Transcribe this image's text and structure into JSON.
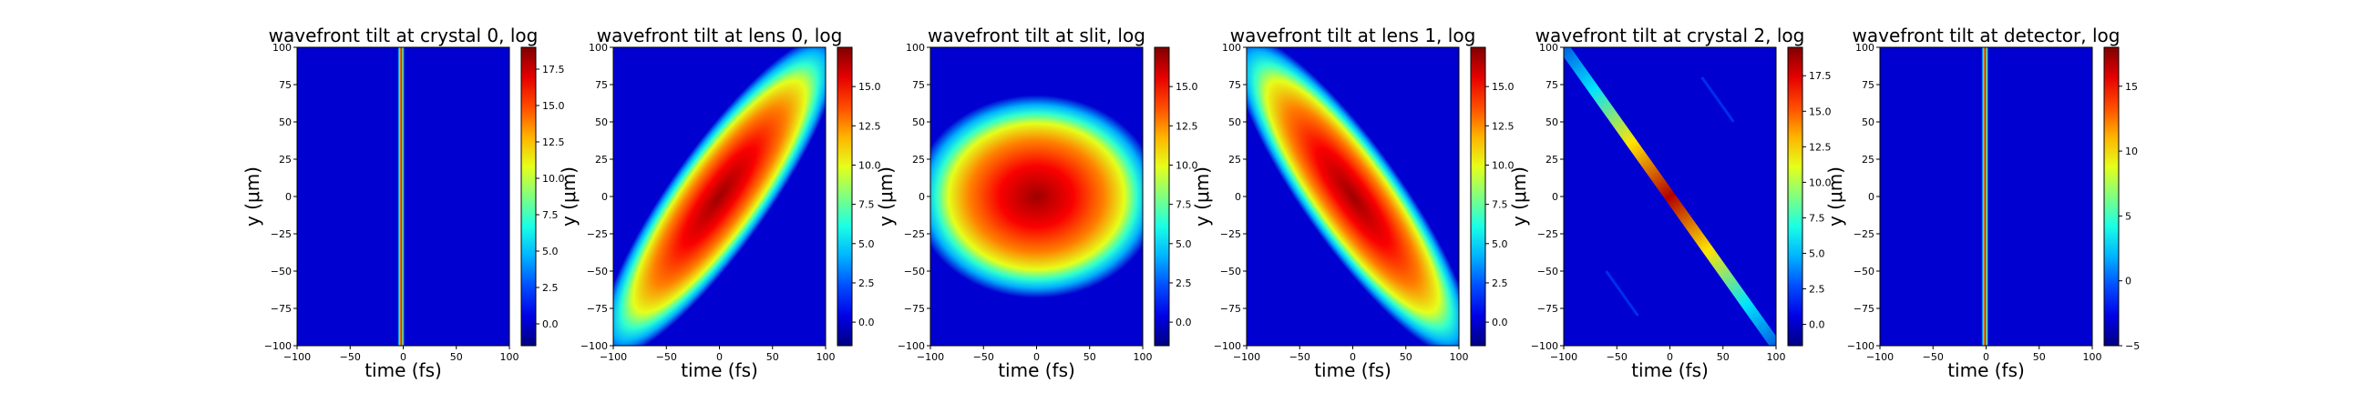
{
  "chart_data": [
    {
      "type": "heatmap",
      "title": "wavefront tilt at crystal 0, log",
      "xlabel": "time (fs)",
      "ylabel": "y (μm)",
      "xlim": [
        -100,
        100
      ],
      "ylim": [
        -100,
        100
      ],
      "x_ticks": [
        -100,
        -50,
        0,
        50,
        100
      ],
      "y_ticks": [
        -100,
        -75,
        -50,
        -25,
        0,
        25,
        50,
        75,
        100
      ],
      "colorbar": {
        "min": -1.5,
        "max": 19,
        "ticks": [
          "0.0",
          "2.5",
          "5.0",
          "7.5",
          "10.0",
          "12.5",
          "15.0",
          "17.5"
        ]
      },
      "feature": {
        "kind": "vertical_line",
        "center_time_fs": -2,
        "width_fs": 3
      },
      "colormap": "jet"
    },
    {
      "type": "heatmap",
      "title": "wavefront tilt at lens 0, log",
      "xlabel": "time (fs)",
      "ylabel": "y (μm)",
      "xlim": [
        -100,
        100
      ],
      "ylim": [
        -100,
        100
      ],
      "x_ticks": [
        -100,
        -50,
        0,
        50,
        100
      ],
      "y_ticks": [
        -100,
        -75,
        -50,
        -25,
        0,
        25,
        50,
        75,
        100
      ],
      "colorbar": {
        "min": -1.5,
        "max": 17.5,
        "ticks": [
          "0.0",
          "2.5",
          "5.0",
          "7.5",
          "10.0",
          "12.5",
          "15.0"
        ]
      },
      "feature": {
        "kind": "tilted_ellipse",
        "slope": 1,
        "major_half_length": 150,
        "minor_half_width": 38
      },
      "colormap": "jet"
    },
    {
      "type": "heatmap",
      "title": "wavefront tilt at slit, log",
      "xlabel": "time (fs)",
      "ylabel": "y (μm)",
      "xlim": [
        -100,
        100
      ],
      "ylim": [
        -100,
        100
      ],
      "x_ticks": [
        -100,
        -50,
        0,
        50,
        100
      ],
      "y_ticks": [
        -100,
        -75,
        -50,
        -25,
        0,
        25,
        50,
        75,
        100
      ],
      "colorbar": {
        "min": -1.5,
        "max": 17.5,
        "ticks": [
          "0.0",
          "2.5",
          "5.0",
          "7.5",
          "10.0",
          "12.5",
          "15.0"
        ]
      },
      "feature": {
        "kind": "ellipse",
        "half_width_fs": 115,
        "half_height_um": 68
      },
      "colormap": "jet"
    },
    {
      "type": "heatmap",
      "title": "wavefront tilt at lens 1, log",
      "xlabel": "time (fs)",
      "ylabel": "y (μm)",
      "xlim": [
        -100,
        100
      ],
      "ylim": [
        -100,
        100
      ],
      "x_ticks": [
        -100,
        -50,
        0,
        50,
        100
      ],
      "y_ticks": [
        -100,
        -75,
        -50,
        -25,
        0,
        25,
        50,
        75,
        100
      ],
      "colorbar": {
        "min": -1.5,
        "max": 17.5,
        "ticks": [
          "0.0",
          "2.5",
          "5.0",
          "7.5",
          "10.0",
          "12.5",
          "15.0"
        ]
      },
      "feature": {
        "kind": "tilted_ellipse",
        "slope": -1,
        "major_half_length": 150,
        "minor_half_width": 38
      },
      "colormap": "jet"
    },
    {
      "type": "heatmap",
      "title": "wavefront tilt at crystal 2, log",
      "xlabel": "time (fs)",
      "ylabel": "y (μm)",
      "xlim": [
        -100,
        100
      ],
      "ylim": [
        -100,
        100
      ],
      "x_ticks": [
        -100,
        -50,
        0,
        50,
        100
      ],
      "y_ticks": [
        -100,
        -75,
        -50,
        -25,
        0,
        25,
        50,
        75,
        100
      ],
      "colorbar": {
        "min": -1.5,
        "max": 19.5,
        "ticks": [
          "0.0",
          "2.5",
          "5.0",
          "7.5",
          "10.0",
          "12.5",
          "15.0",
          "17.5"
        ]
      },
      "feature": {
        "kind": "diagonal_line",
        "slope": -1,
        "width_fs": 4
      },
      "colormap": "jet"
    },
    {
      "type": "heatmap",
      "title": "wavefront tilt at detector, log",
      "xlabel": "time (fs)",
      "ylabel": "y (μm)",
      "xlim": [
        -100,
        100
      ],
      "ylim": [
        -100,
        100
      ],
      "x_ticks": [
        -100,
        -50,
        0,
        50,
        100
      ],
      "y_ticks": [
        -100,
        -75,
        -50,
        -25,
        0,
        25,
        50,
        75,
        100
      ],
      "colorbar": {
        "min": -5,
        "max": 18,
        "ticks": [
          "-5",
          "0",
          "5",
          "10",
          "15"
        ]
      },
      "feature": {
        "kind": "vertical_line",
        "center_time_fs": -1,
        "width_fs": 3
      },
      "colormap": "jet"
    }
  ]
}
